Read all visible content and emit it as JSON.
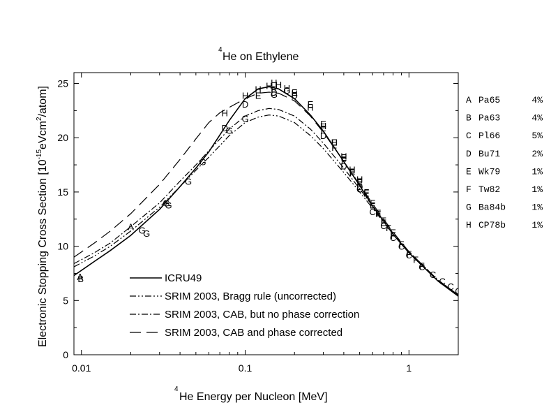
{
  "chart_data": {
    "type": "line",
    "title_sup": "4",
    "title": "He on Ethylene",
    "xlabel_sup": "4",
    "xlabel": "He Energy per Nucleon [MeV]",
    "ylabel_parts": [
      "Electronic Stopping Cross Section [10",
      "-15",
      "eVcm",
      "2",
      "/atom]"
    ],
    "x_scale": "log",
    "xlim": [
      0.009,
      2.0
    ],
    "ylim": [
      0,
      26
    ],
    "x_ticks": [
      {
        "value": 0.01,
        "label": "0.01"
      },
      {
        "value": 0.1,
        "label": "0.1"
      },
      {
        "value": 1,
        "label": "1"
      }
    ],
    "y_ticks": [
      {
        "value": 0,
        "label": "0"
      },
      {
        "value": 5,
        "label": "5"
      },
      {
        "value": 10,
        "label": "10"
      },
      {
        "value": 15,
        "label": "15"
      },
      {
        "value": 20,
        "label": "20"
      },
      {
        "value": 25,
        "label": "25"
      }
    ],
    "legend_position": "bottom-left",
    "series": [
      {
        "name": "ICRU49",
        "dash": "solid",
        "x": [
          0.009,
          0.012,
          0.015,
          0.02,
          0.03,
          0.04,
          0.05,
          0.06,
          0.08,
          0.1,
          0.12,
          0.14,
          0.16,
          0.2,
          0.25,
          0.3,
          0.4,
          0.5,
          0.6,
          0.8,
          1.0,
          1.5,
          2.0
        ],
        "y": [
          7.3,
          8.6,
          9.6,
          11.0,
          13.4,
          15.5,
          17.2,
          18.7,
          21.6,
          23.6,
          24.5,
          24.7,
          24.5,
          23.6,
          22.1,
          20.6,
          17.8,
          15.6,
          13.7,
          11.1,
          9.4,
          6.8,
          5.4
        ]
      },
      {
        "name": "SRIM 2003, Bragg rule (uncorrected)",
        "dash": "dash-dot-dot",
        "x": [
          0.009,
          0.012,
          0.015,
          0.02,
          0.03,
          0.04,
          0.05,
          0.06,
          0.08,
          0.1,
          0.12,
          0.14,
          0.16,
          0.2,
          0.25,
          0.3,
          0.4,
          0.5,
          0.6,
          0.8,
          1.0,
          1.5,
          2.0
        ],
        "y": [
          8.1,
          9.1,
          10.0,
          11.4,
          13.6,
          15.5,
          17.0,
          18.2,
          20.2,
          21.4,
          21.9,
          22.1,
          22.0,
          21.4,
          20.2,
          19.0,
          16.8,
          15.0,
          13.5,
          11.1,
          9.4,
          6.9,
          5.5
        ]
      },
      {
        "name": "SRIM 2003, CAB, but no phase correction",
        "dash": "dash-dot",
        "x": [
          0.009,
          0.012,
          0.015,
          0.02,
          0.03,
          0.04,
          0.05,
          0.06,
          0.08,
          0.1,
          0.12,
          0.14,
          0.16,
          0.2,
          0.25,
          0.3,
          0.4,
          0.5,
          0.6,
          0.8,
          1.0,
          1.5,
          2.0
        ],
        "y": [
          8.4,
          9.4,
          10.3,
          11.8,
          14.0,
          16.0,
          17.5,
          18.8,
          20.8,
          22.0,
          22.5,
          22.7,
          22.6,
          22.0,
          20.8,
          19.5,
          17.2,
          15.3,
          13.7,
          11.2,
          9.5,
          6.9,
          5.5
        ]
      },
      {
        "name": "SRIM 2003, CAB and phase corrected",
        "dash": "long-dash",
        "x": [
          0.009,
          0.012,
          0.015,
          0.02,
          0.03,
          0.04,
          0.05,
          0.06,
          0.07,
          0.08,
          0.1,
          0.12,
          0.14,
          0.16,
          0.2,
          0.25,
          0.3,
          0.4,
          0.5,
          0.6,
          0.8,
          1.0,
          1.5,
          2.0
        ],
        "y": [
          9.0,
          10.3,
          11.4,
          13.0,
          15.7,
          18.0,
          19.9,
          21.4,
          22.3,
          22.8,
          23.6,
          24.1,
          24.2,
          24.1,
          23.4,
          22.0,
          20.5,
          17.8,
          15.7,
          13.9,
          11.3,
          9.5,
          6.9,
          5.5
        ]
      }
    ],
    "data_sets": [
      {
        "symbol": "A",
        "ref": "Pa65",
        "error": "4%",
        "x": [
          0.0098,
          0.02
        ],
        "y": [
          7.2,
          11.8
        ]
      },
      {
        "symbol": "B",
        "ref": "Pa63",
        "error": "4%",
        "x": [
          0.0099
        ],
        "y": [
          7.0
        ]
      },
      {
        "symbol": "C",
        "ref": "Pl66",
        "error": "5%",
        "x": [
          0.5,
          0.6,
          0.7,
          0.8,
          0.9,
          1.0,
          1.2,
          1.4,
          1.6,
          1.8,
          2.0
        ],
        "y": [
          15.3,
          13.2,
          11.9,
          10.8,
          10.0,
          9.2,
          8.1,
          7.4,
          6.8,
          6.3,
          5.9
        ]
      },
      {
        "symbol": "D",
        "ref": "Bu71",
        "error": "2%",
        "x": [
          0.075,
          0.1,
          0.15,
          0.2,
          0.3,
          0.4,
          0.5
        ],
        "y": [
          20.9,
          23.1,
          24.2,
          23.9,
          20.2,
          17.4,
          15.5
        ]
      },
      {
        "symbol": "E",
        "ref": "Wk79",
        "error": "1%",
        "x": [
          0.12,
          0.15,
          0.2,
          0.25,
          0.3,
          0.35,
          0.4,
          0.45,
          0.5,
          0.55,
          0.6,
          0.65,
          0.7,
          0.8
        ],
        "y": [
          23.9,
          24.5,
          24.2,
          23.1,
          21.3,
          19.6,
          18.2,
          16.9,
          16.0,
          14.9,
          13.8,
          13.1,
          12.2,
          11.3
        ]
      },
      {
        "symbol": "F",
        "ref": "Tw82",
        "error": "1%",
        "x": [
          0.3,
          0.35,
          0.4,
          0.45,
          0.5,
          0.55,
          0.6,
          0.65,
          0.7,
          0.75,
          0.8,
          0.9,
          1.0,
          1.1,
          1.2
        ],
        "y": [
          20.7,
          19.1,
          17.9,
          16.8,
          15.9,
          15.0,
          14.0,
          13.0,
          12.4,
          11.7,
          11.0,
          10.2,
          9.3,
          8.8,
          8.2
        ]
      },
      {
        "symbol": "G",
        "ref": "Ba84b",
        "error": "1%",
        "x": [
          0.0235,
          0.025,
          0.033,
          0.034,
          0.045,
          0.055,
          0.08,
          0.1,
          0.15,
          0.18
        ],
        "y": [
          11.5,
          11.2,
          14.0,
          13.8,
          16.0,
          17.8,
          20.7,
          21.8,
          24.0,
          24.4
        ]
      },
      {
        "symbol": "H",
        "ref": "CP78b",
        "error": "1%",
        "x": [
          0.075,
          0.1,
          0.12,
          0.14,
          0.15,
          0.16,
          0.18,
          0.2,
          0.25,
          0.3,
          0.35,
          0.4,
          0.45,
          0.5
        ],
        "y": [
          22.3,
          23.9,
          24.5,
          24.8,
          25.1,
          24.9,
          24.6,
          24.1,
          22.8,
          21.1,
          19.6,
          18.3,
          17.1,
          16.2
        ]
      }
    ]
  }
}
